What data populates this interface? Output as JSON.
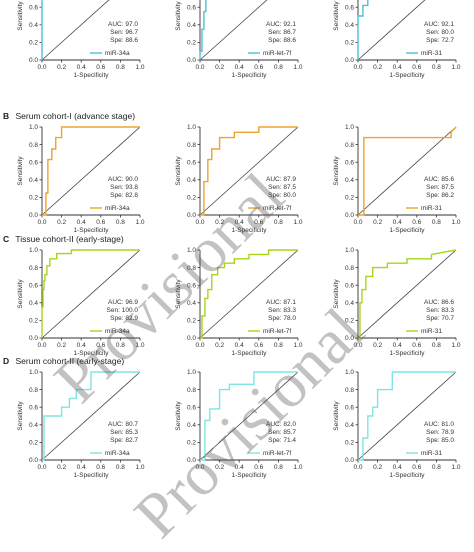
{
  "watermark": "Provisional",
  "common": {
    "xlabel": "1-Specificity",
    "ylabel": "Sensitivity",
    "ticks": [
      "0.0",
      "0.2",
      "0.4",
      "0.6",
      "0.8",
      "1.0"
    ],
    "stat_labels": {
      "auc": "AUC:",
      "sen": "Sen:",
      "spe": "Spe:"
    }
  },
  "sections": [
    {
      "letter": "",
      "title": ""
    },
    {
      "letter": "B",
      "title": "Serum cohort-I (advance stage)"
    },
    {
      "letter": "C",
      "title": "Tissue cohort-II (early-stage)"
    },
    {
      "letter": "D",
      "title": "Serum cohort-II (early-stage)"
    }
  ],
  "chart_data": [
    {
      "type": "line",
      "row": 0,
      "col": 0,
      "color": "#4dbfd9",
      "series_name": "miR-34a",
      "auc": "97.0",
      "sen": "96.7",
      "spe": "88.6",
      "xlim": [
        0,
        1
      ],
      "ylim": [
        0,
        1
      ],
      "x": [
        0,
        0,
        0.02,
        0.02,
        0.04,
        0.04,
        0.08,
        0.08,
        0.15,
        0.15,
        0.3,
        0.3,
        0.6,
        1
      ],
      "y": [
        0,
        0.75,
        0.75,
        0.85,
        0.85,
        0.88,
        0.88,
        0.93,
        0.93,
        0.97,
        0.97,
        1.0,
        1.0,
        1.0
      ]
    },
    {
      "type": "line",
      "row": 0,
      "col": 1,
      "color": "#4dbfd9",
      "series_name": "miR-let-7f",
      "auc": "92.1",
      "sen": "86.7",
      "spe": "88.6",
      "xlim": [
        0,
        1
      ],
      "ylim": [
        0,
        1
      ],
      "x": [
        0,
        0,
        0.02,
        0.02,
        0.04,
        0.04,
        0.06,
        0.06,
        0.08,
        0.08,
        0.12,
        0.12,
        0.16,
        0.16,
        0.25,
        0.25,
        1
      ],
      "y": [
        0,
        0.1,
        0.1,
        0.35,
        0.35,
        0.55,
        0.55,
        0.75,
        0.75,
        0.87,
        0.87,
        0.92,
        0.92,
        0.96,
        0.96,
        1.0,
        1.0
      ]
    },
    {
      "type": "line",
      "row": 0,
      "col": 2,
      "color": "#4dbfd9",
      "series_name": "miR-31",
      "auc": "92.1",
      "sen": "80.0",
      "spe": "72.7",
      "xlim": [
        0,
        1
      ],
      "ylim": [
        0,
        1
      ],
      "x": [
        0,
        0,
        0.05,
        0.05,
        0.1,
        0.1,
        0.2,
        0.2,
        0.3,
        0.3,
        0.5,
        0.5,
        0.7,
        0.7,
        0.9,
        0.9,
        1
      ],
      "y": [
        0,
        0.5,
        0.5,
        0.62,
        0.62,
        0.72,
        0.72,
        0.8,
        0.8,
        0.85,
        0.85,
        0.88,
        0.88,
        0.92,
        0.92,
        1.0,
        1.0
      ]
    },
    {
      "type": "line",
      "row": 1,
      "col": 0,
      "color": "#f0a22e",
      "series_name": "miR-34a",
      "auc": "90.0",
      "sen": "93.8",
      "spe": "82.8",
      "xlim": [
        0,
        1
      ],
      "ylim": [
        0,
        1
      ],
      "x": [
        0,
        0.04,
        0.04,
        0.06,
        0.06,
        0.1,
        0.1,
        0.14,
        0.14,
        0.2,
        0.2,
        0.5,
        1
      ],
      "y": [
        0,
        0,
        0.25,
        0.25,
        0.63,
        0.63,
        0.75,
        0.75,
        0.88,
        0.88,
        1.0,
        1.0,
        1.0
      ]
    },
    {
      "type": "line",
      "row": 1,
      "col": 1,
      "color": "#f0a22e",
      "series_name": "miR-let-7f",
      "auc": "87.9",
      "sen": "87.5",
      "spe": "80.0",
      "xlim": [
        0,
        1
      ],
      "ylim": [
        0,
        1
      ],
      "x": [
        0,
        0.04,
        0.04,
        0.08,
        0.08,
        0.12,
        0.12,
        0.2,
        0.2,
        0.35,
        0.35,
        0.6,
        0.6,
        1
      ],
      "y": [
        0,
        0,
        0.38,
        0.38,
        0.63,
        0.63,
        0.75,
        0.75,
        0.88,
        0.88,
        0.94,
        0.94,
        1.0,
        1.0
      ]
    },
    {
      "type": "line",
      "row": 1,
      "col": 2,
      "color": "#f0a22e",
      "series_name": "miR-31",
      "auc": "85.6",
      "sen": "87.5",
      "spe": "86.2",
      "xlim": [
        0,
        1
      ],
      "ylim": [
        0,
        1
      ],
      "x": [
        0,
        0.06,
        0.06,
        0.95,
        0.95,
        1
      ],
      "y": [
        0,
        0,
        0.88,
        0.88,
        0.94,
        1.0
      ]
    },
    {
      "type": "line",
      "row": 2,
      "col": 0,
      "color": "#a6d61a",
      "series_name": "miR-34a",
      "auc": "96.9",
      "sen": "100.0",
      "spe": "82.9",
      "xlim": [
        0,
        1
      ],
      "ylim": [
        0,
        1
      ],
      "x": [
        0,
        0,
        0.01,
        0.01,
        0.02,
        0.02,
        0.03,
        0.03,
        0.05,
        0.05,
        0.08,
        0.08,
        0.15,
        0.15,
        0.3,
        0.3,
        1
      ],
      "y": [
        0,
        0.35,
        0.35,
        0.55,
        0.55,
        0.65,
        0.65,
        0.72,
        0.72,
        0.82,
        0.82,
        0.9,
        0.9,
        0.96,
        0.96,
        1.0,
        1.0
      ]
    },
    {
      "type": "line",
      "row": 2,
      "col": 1,
      "color": "#a6d61a",
      "series_name": "miR-let-7f",
      "auc": "87.1",
      "sen": "83.3",
      "spe": "78.0",
      "xlim": [
        0,
        1
      ],
      "ylim": [
        0,
        1
      ],
      "x": [
        0,
        0.02,
        0.02,
        0.05,
        0.05,
        0.08,
        0.08,
        0.12,
        0.12,
        0.18,
        0.18,
        0.25,
        0.25,
        0.35,
        0.35,
        0.5,
        0.5,
        0.7,
        0.7,
        1
      ],
      "y": [
        0,
        0,
        0.25,
        0.25,
        0.45,
        0.45,
        0.55,
        0.55,
        0.72,
        0.72,
        0.8,
        0.8,
        0.85,
        0.85,
        0.9,
        0.9,
        0.95,
        0.95,
        1.0,
        1.0
      ]
    },
    {
      "type": "line",
      "row": 2,
      "col": 2,
      "color": "#a6d61a",
      "series_name": "miR-31",
      "auc": "86.6",
      "sen": "83.3",
      "spe": "70.7",
      "xlim": [
        0,
        1
      ],
      "ylim": [
        0,
        1
      ],
      "x": [
        0,
        0.02,
        0.02,
        0.04,
        0.04,
        0.08,
        0.08,
        0.15,
        0.15,
        0.3,
        0.3,
        0.5,
        0.5,
        0.75,
        0.75,
        1
      ],
      "y": [
        0,
        0,
        0.4,
        0.4,
        0.55,
        0.55,
        0.7,
        0.7,
        0.8,
        0.8,
        0.85,
        0.85,
        0.9,
        0.9,
        0.95,
        1.0
      ]
    },
    {
      "type": "line",
      "row": 3,
      "col": 0,
      "color": "#7fe5e2",
      "series_name": "miR-34a",
      "auc": "80.7",
      "sen": "85.3",
      "spe": "82.7",
      "xlim": [
        0,
        1
      ],
      "ylim": [
        0,
        1
      ],
      "x": [
        0,
        0.02,
        0.02,
        0.1,
        0.1,
        0.2,
        0.2,
        0.28,
        0.28,
        0.35,
        0.35,
        0.5,
        0.5,
        1
      ],
      "y": [
        0,
        0,
        0.5,
        0.5,
        0.5,
        0.5,
        0.6,
        0.6,
        0.7,
        0.7,
        0.8,
        0.8,
        1.0,
        1.0
      ]
    },
    {
      "type": "line",
      "row": 3,
      "col": 1,
      "color": "#7fe5e2",
      "series_name": "miR-let-7f",
      "auc": "82.0",
      "sen": "85.7",
      "spe": "71.4",
      "xlim": [
        0,
        1
      ],
      "ylim": [
        0,
        1
      ],
      "x": [
        0,
        0.05,
        0.05,
        0.1,
        0.1,
        0.2,
        0.2,
        0.3,
        0.3,
        0.55,
        0.55,
        1
      ],
      "y": [
        0,
        0,
        0.45,
        0.45,
        0.58,
        0.58,
        0.8,
        0.8,
        0.86,
        0.86,
        1.0,
        1.0
      ]
    },
    {
      "type": "line",
      "row": 3,
      "col": 2,
      "color": "#7fe5e2",
      "series_name": "miR-31",
      "auc": "81.0",
      "sen": "78.9",
      "spe": "85.0",
      "xlim": [
        0,
        1
      ],
      "ylim": [
        0,
        1
      ],
      "x": [
        0,
        0.05,
        0.05,
        0.1,
        0.1,
        0.15,
        0.15,
        0.2,
        0.2,
        0.35,
        0.35,
        1
      ],
      "y": [
        0,
        0,
        0.25,
        0.25,
        0.5,
        0.5,
        0.6,
        0.6,
        0.8,
        0.8,
        1.0,
        1.0
      ]
    }
  ]
}
